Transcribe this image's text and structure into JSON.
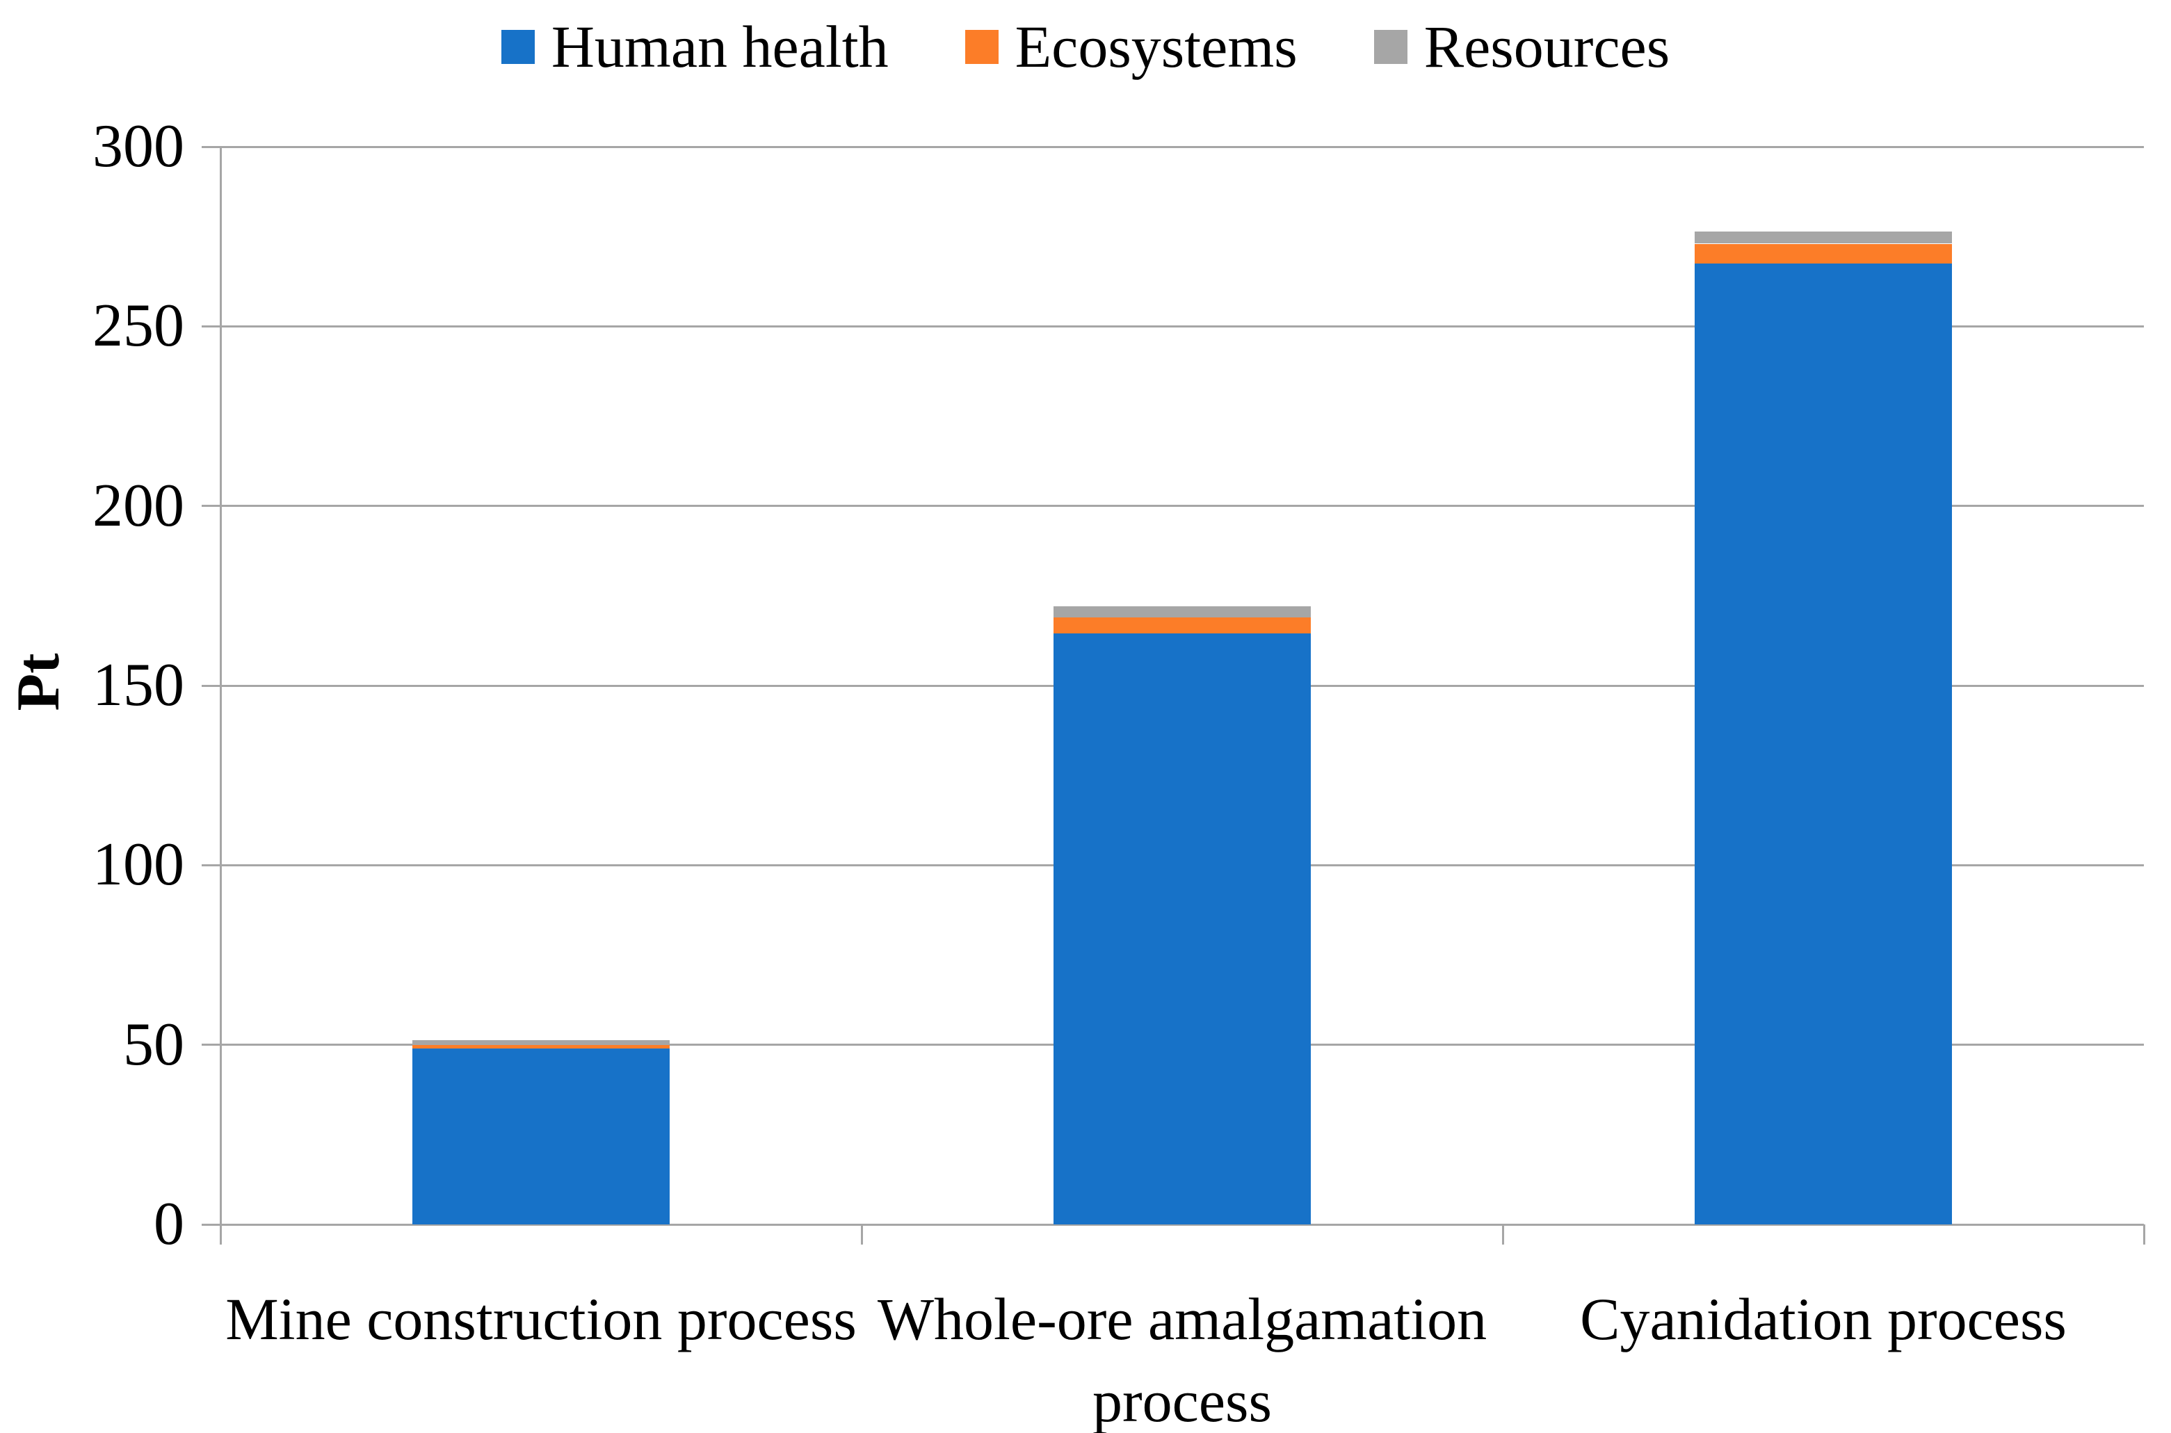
{
  "chart_data": {
    "type": "bar",
    "stacked": true,
    "title": "",
    "categories": [
      "Mine construction process",
      "Whole-ore amalgamation process",
      "Cyanidation process"
    ],
    "series": [
      {
        "name": "Human health",
        "color": "#1772C8",
        "values": [
          49,
          164.5,
          267.5
        ]
      },
      {
        "name": "Ecosystems",
        "color": "#FC7D28",
        "values": [
          1,
          4.5,
          5.5
        ]
      },
      {
        "name": "Resources",
        "color": "#A6A6A6",
        "values": [
          1.2,
          3,
          3.3
        ]
      }
    ],
    "xlabel": "",
    "ylabel": "Pt",
    "ylim": [
      0,
      300
    ],
    "yticks": [
      0,
      50,
      100,
      150,
      200,
      250,
      300
    ],
    "grid": true,
    "legend_position": "top center",
    "axis_color": "#A6A6A6",
    "grid_color": "#A6A6A6",
    "text_color": "#000000",
    "background_color": "#FFFFFF"
  }
}
